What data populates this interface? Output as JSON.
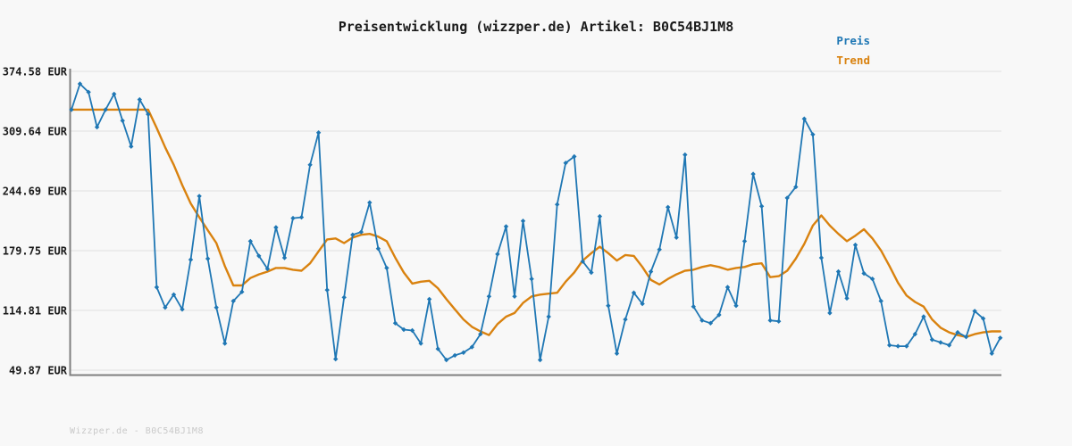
{
  "title": "Preisentwicklung (wizzper.de) Artikel: B0C54BJ1M8",
  "footer": "Wizzper.de - B0C54BJ1M8",
  "legend": [
    {
      "label": "Preis",
      "color": "#1f77b4"
    },
    {
      "label": "Trend",
      "color": "#d9820f"
    }
  ],
  "colors": {
    "background": "#f8f8f8",
    "gridline": "#e4e4e4",
    "axis_spine": "#7f7f7f",
    "price_line": "#1f77b4",
    "trend_line": "#d9820f",
    "title_text": "#1a1a1a",
    "watermark_text": "#c9c9c9"
  },
  "y_axis": {
    "unit": "EUR",
    "ticks": [
      {
        "value": 374.58,
        "label": "374.58 EUR"
      },
      {
        "value": 309.64,
        "label": "309.64 EUR"
      },
      {
        "value": 244.69,
        "label": "244.69 EUR"
      },
      {
        "value": 179.75,
        "label": "179.75 EUR"
      },
      {
        "value": 114.81,
        "label": "114.81 EUR"
      },
      {
        "value": 49.87,
        "label": "49.87 EUR"
      }
    ]
  },
  "chart_data": {
    "type": "line",
    "title": "Preisentwicklung (wizzper.de) Artikel: B0C54BJ1M8",
    "xlabel": "",
    "ylabel": "EUR",
    "ylim": [
      45,
      388
    ],
    "y_ticks_eur": [
      374.58,
      309.64,
      244.69,
      179.75,
      114.81,
      49.87
    ],
    "grid": true,
    "legend_position": "top-right",
    "x_axis_labels_visible": false,
    "series": [
      {
        "name": "Preis",
        "color": "#1f77b4",
        "marker": "diamond",
        "values": [
          333,
          361,
          352,
          314,
          333,
          350,
          321,
          293,
          344,
          328,
          140,
          118,
          132,
          116,
          170,
          239,
          171,
          118,
          79,
          125,
          135,
          190,
          174,
          160,
          205,
          172,
          215,
          216,
          273,
          308,
          137,
          62,
          129,
          197,
          200,
          232,
          182,
          161,
          101,
          94,
          93,
          79,
          127,
          73,
          61,
          66,
          69,
          75,
          89,
          130,
          176,
          206,
          130,
          212,
          149,
          61,
          108,
          230,
          275,
          282,
          168,
          156,
          217,
          120,
          68,
          105,
          134,
          122,
          157,
          181,
          227,
          194,
          284,
          119,
          104,
          101,
          110,
          140,
          120,
          190,
          263,
          228,
          104,
          103,
          237,
          249,
          323,
          306,
          172,
          112,
          157,
          128,
          186,
          155,
          149,
          125,
          77,
          76,
          76,
          89,
          108,
          83,
          80,
          77,
          91,
          86,
          114,
          106,
          68,
          85
        ]
      },
      {
        "name": "Trend",
        "color": "#d9820f",
        "marker": "none",
        "values": [
          333,
          333,
          333,
          333,
          333,
          333,
          333,
          333,
          333,
          333,
          313,
          292,
          273,
          251,
          231,
          216,
          202,
          188,
          163,
          142,
          142,
          150,
          154,
          157,
          161,
          161,
          159,
          158,
          166,
          179,
          192,
          193,
          188,
          194,
          197,
          198,
          195,
          190,
          172,
          156,
          144,
          146,
          147,
          139,
          127,
          116,
          105,
          97,
          92,
          88,
          100,
          108,
          112,
          123,
          130,
          132,
          133,
          134,
          146,
          156,
          169,
          177,
          184,
          177,
          169,
          175,
          174,
          162,
          148,
          143,
          149,
          154,
          158,
          159,
          162,
          164,
          162,
          159,
          161,
          162,
          165,
          166,
          151,
          152,
          158,
          171,
          187,
          207,
          218,
          207,
          198,
          190,
          196,
          203,
          193,
          180,
          163,
          145,
          131,
          124,
          119,
          105,
          96,
          91,
          88,
          86,
          89,
          91,
          92,
          92
        ]
      }
    ]
  }
}
